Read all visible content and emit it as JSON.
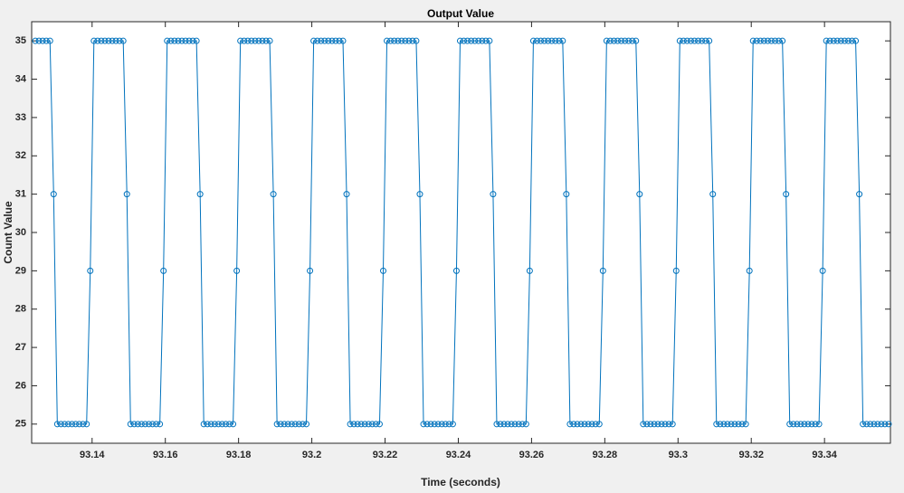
{
  "chart_data": {
    "type": "line",
    "title": "Output Value",
    "xlabel": "Time (seconds)",
    "ylabel": "Count Value",
    "color": "#0072bd",
    "marker": "circle",
    "x": [
      93.1245,
      93.1255,
      93.1265,
      93.1275,
      93.1285,
      93.1295,
      93.1305,
      93.1315,
      93.1325,
      93.1335,
      93.1345,
      93.1355,
      93.1365,
      93.1375,
      93.1385,
      93.1395,
      93.1405,
      93.1415,
      93.1425,
      93.1435,
      93.1445,
      93.1455,
      93.1465,
      93.1475,
      93.1485,
      93.1495,
      93.1505,
      93.1515,
      93.1525,
      93.1535,
      93.1545,
      93.1555,
      93.1565,
      93.1575,
      93.1585,
      93.1595,
      93.1605,
      93.1615,
      93.1625,
      93.1635,
      93.1645,
      93.1655,
      93.1665,
      93.1675,
      93.1685,
      93.1695,
      93.1705,
      93.1715,
      93.1725,
      93.1735,
      93.1745,
      93.1755,
      93.1765,
      93.1775,
      93.1785,
      93.1795,
      93.1805,
      93.1815,
      93.1825,
      93.1835,
      93.1845,
      93.1855,
      93.1865,
      93.1875,
      93.1885,
      93.1895,
      93.1905,
      93.1915,
      93.1925,
      93.1935,
      93.1945,
      93.1955,
      93.1965,
      93.1975,
      93.1985,
      93.1995,
      93.2005,
      93.2015,
      93.2025,
      93.2035,
      93.2045,
      93.2055,
      93.2065,
      93.2075,
      93.2085,
      93.2095,
      93.2105,
      93.2115,
      93.2125,
      93.2135,
      93.2145,
      93.2155,
      93.2165,
      93.2175,
      93.2185,
      93.2195,
      93.2205,
      93.2215,
      93.2225,
      93.2235,
      93.2245,
      93.2255,
      93.2265,
      93.2275,
      93.2285,
      93.2295,
      93.2305,
      93.2315,
      93.2325,
      93.2335,
      93.2345,
      93.2355,
      93.2365,
      93.2375,
      93.2385,
      93.2395,
      93.2405,
      93.2415,
      93.2425,
      93.2435,
      93.2445,
      93.2455,
      93.2465,
      93.2475,
      93.2485,
      93.2495,
      93.2505,
      93.2515,
      93.2525,
      93.2535,
      93.2545,
      93.2555,
      93.2565,
      93.2575,
      93.2585,
      93.2595,
      93.2605,
      93.2615,
      93.2625,
      93.2635,
      93.2645,
      93.2655,
      93.2665,
      93.2675,
      93.2685,
      93.2695,
      93.2705,
      93.2715,
      93.2725,
      93.2735,
      93.2745,
      93.2755,
      93.2765,
      93.2775,
      93.2785,
      93.2795,
      93.2805,
      93.2815,
      93.2825,
      93.2835,
      93.2845,
      93.2855,
      93.2865,
      93.2875,
      93.2885,
      93.2895,
      93.2905,
      93.2915,
      93.2925,
      93.2935,
      93.2945,
      93.2955,
      93.2965,
      93.2975,
      93.2985,
      93.2995,
      93.3005,
      93.3015,
      93.3025,
      93.3035,
      93.3045,
      93.3055,
      93.3065,
      93.3075,
      93.3085,
      93.3095,
      93.3105,
      93.3115,
      93.3125,
      93.3135,
      93.3145,
      93.3155,
      93.3165,
      93.3175,
      93.3185,
      93.3195,
      93.3205,
      93.3215,
      93.3225,
      93.3235,
      93.3245,
      93.3255,
      93.3265,
      93.3275,
      93.3285,
      93.3295,
      93.3305,
      93.3315,
      93.3325,
      93.3335,
      93.3345,
      93.3355,
      93.3365,
      93.3375,
      93.3385,
      93.3395,
      93.3405,
      93.3415,
      93.3425,
      93.3435,
      93.3445,
      93.3455,
      93.3465,
      93.3475,
      93.3485,
      93.3495,
      93.3505,
      93.3515,
      93.3525,
      93.3535,
      93.3545,
      93.3555,
      93.3565,
      93.3575
    ],
    "values": [
      35,
      35,
      35,
      35,
      35,
      31,
      25,
      25,
      25,
      25,
      25,
      25,
      25,
      25,
      25,
      29,
      35,
      35,
      35,
      35,
      35,
      35,
      35,
      35,
      35,
      31,
      25,
      25,
      25,
      25,
      25,
      25,
      25,
      25,
      25,
      29,
      35,
      35,
      35,
      35,
      35,
      35,
      35,
      35,
      35,
      31,
      25,
      25,
      25,
      25,
      25,
      25,
      25,
      25,
      25,
      29,
      35,
      35,
      35,
      35,
      35,
      35,
      35,
      35,
      35,
      31,
      25,
      25,
      25,
      25,
      25,
      25,
      25,
      25,
      25,
      29,
      35,
      35,
      35,
      35,
      35,
      35,
      35,
      35,
      35,
      31,
      25,
      25,
      25,
      25,
      25,
      25,
      25,
      25,
      25,
      29,
      35,
      35,
      35,
      35,
      35,
      35,
      35,
      35,
      35,
      31,
      25,
      25,
      25,
      25,
      25,
      25,
      25,
      25,
      25,
      29,
      35,
      35,
      35,
      35,
      35,
      35,
      35,
      35,
      35,
      31,
      25,
      25,
      25,
      25,
      25,
      25,
      25,
      25,
      25,
      29,
      35,
      35,
      35,
      35,
      35,
      35,
      35,
      35,
      35,
      31,
      25,
      25,
      25,
      25,
      25,
      25,
      25,
      25,
      25,
      29,
      35,
      35,
      35,
      35,
      35,
      35,
      35,
      35,
      35,
      31,
      25,
      25,
      25,
      25,
      25,
      25,
      25,
      25,
      25,
      29,
      35,
      35,
      35,
      35,
      35,
      35,
      35,
      35,
      35,
      31,
      25,
      25,
      25,
      25,
      25,
      25,
      25,
      25,
      25,
      29,
      35,
      35,
      35,
      35,
      35,
      35,
      35,
      35,
      35,
      31,
      25,
      25,
      25,
      25,
      25,
      25,
      25,
      25,
      25,
      29,
      35,
      35,
      35,
      35,
      35,
      35,
      35,
      35,
      35,
      31,
      25,
      25,
      25,
      25,
      25,
      25,
      25,
      25
    ],
    "xlim": [
      93.1235,
      93.358
    ],
    "xticks": [
      93.14,
      93.16,
      93.18,
      93.2,
      93.22,
      93.24,
      93.26,
      93.28,
      93.3,
      93.32,
      93.34
    ],
    "ylim": [
      24.5,
      35.5
    ],
    "yticks": [
      25,
      26,
      27,
      28,
      29,
      30,
      31,
      32,
      33,
      34,
      35
    ],
    "grid": false
  }
}
